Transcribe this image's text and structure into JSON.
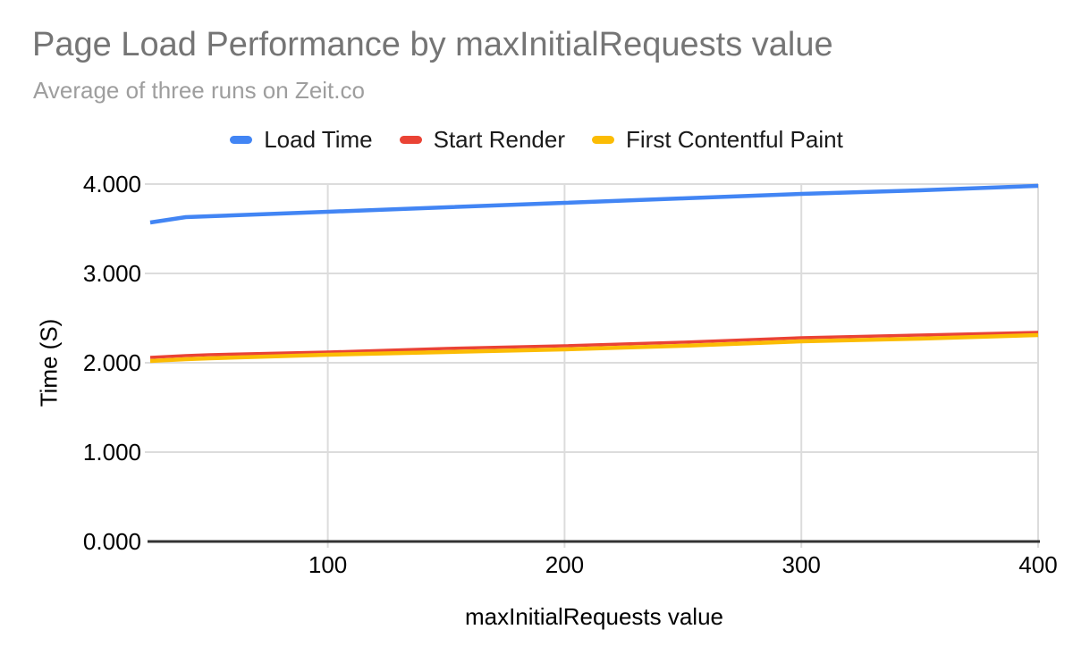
{
  "header": {
    "title": "Page Load Performance by maxInitialRequests value",
    "subtitle": "Average of three runs on Zeit.co"
  },
  "legend": {
    "position": "top",
    "items": [
      {
        "label": "Load Time",
        "color": "#4285F4"
      },
      {
        "label": "Start Render",
        "color": "#EA4335"
      },
      {
        "label": "First Contentful Paint",
        "color": "#FBBC04"
      }
    ]
  },
  "chart_data": {
    "type": "line",
    "title": "Page Load Performance by maxInitialRequests value",
    "subtitle": "Average of three runs on Zeit.co",
    "xlabel": "maxInitialRequests value",
    "ylabel": "Time (S)",
    "xlim": [
      25,
      400
    ],
    "ylim": [
      0,
      4
    ],
    "xticks": [
      100,
      200,
      300,
      400
    ],
    "yticks": [
      0,
      1,
      2,
      3,
      4
    ],
    "ytick_labels": [
      "0.000",
      "1.000",
      "2.000",
      "3.000",
      "4.000"
    ],
    "grid": true,
    "legend_position": "top",
    "x": [
      25,
      40,
      50,
      100,
      150,
      200,
      250,
      300,
      350,
      400
    ],
    "series": [
      {
        "name": "Load Time",
        "color": "#4285F4",
        "values": [
          3.57,
          3.63,
          3.64,
          3.69,
          3.74,
          3.79,
          3.84,
          3.89,
          3.93,
          3.98
        ]
      },
      {
        "name": "Start Render",
        "color": "#EA4335",
        "values": [
          2.06,
          2.08,
          2.09,
          2.12,
          2.16,
          2.19,
          2.23,
          2.28,
          2.31,
          2.34
        ]
      },
      {
        "name": "First Contentful Paint",
        "color": "#FBBC04",
        "values": [
          2.02,
          2.04,
          2.05,
          2.09,
          2.12,
          2.15,
          2.19,
          2.24,
          2.27,
          2.31
        ]
      }
    ],
    "colors": {
      "gridline": "#dcdcdc",
      "baseline": "#333333",
      "tick_text": "#000000"
    }
  }
}
